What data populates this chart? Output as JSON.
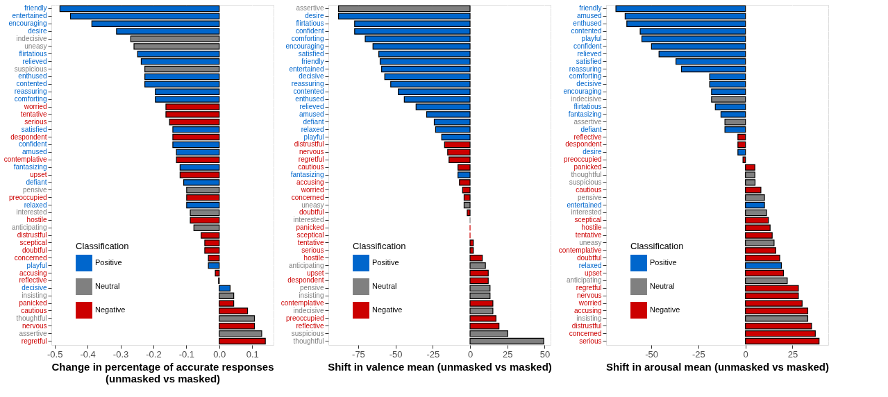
{
  "chart_data": [
    {
      "type": "bar",
      "orientation": "horizontal",
      "xlabel": "Change in percentage of accurate responses\n(unmasked vs masked)",
      "legend_title": "Classification",
      "legend": "bottom left",
      "grid": true,
      "categories": [
        "friendly",
        "entertained",
        "encouraging",
        "desire",
        "indecisive",
        "uneasy",
        "flirtatious",
        "relieved",
        "suspicious",
        "enthused",
        "contented",
        "reassuring",
        "comforting",
        "worried",
        "tentative",
        "serious",
        "satisfied",
        "despondent",
        "confident",
        "amused",
        "contemplative",
        "fantasizing",
        "upset",
        "defiant",
        "pensive",
        "preoccupied",
        "relaxed",
        "interested",
        "hostile",
        "anticipating",
        "distrustful",
        "sceptical",
        "doubtful",
        "concerned",
        "playful",
        "accusing",
        "reflective",
        "decisive",
        "insisting",
        "panicked",
        "cautious",
        "thoughtful",
        "nervous",
        "assertive",
        "regretful"
      ],
      "xlim": [
        -0.51,
        0.165
      ],
      "xticks": [
        -0.5,
        -0.4,
        -0.3,
        -0.2,
        -0.1,
        {
          "value": 0,
          "label": "0.0"
        },
        0.1
      ],
      "series": [
        {
          "name": "Positive",
          "color": "#0066cc",
          "values": [
            -0.484,
            -0.452,
            -0.387,
            -0.312,
            null,
            null,
            -0.248,
            -0.237,
            null,
            -0.226,
            -0.226,
            -0.194,
            -0.194,
            null,
            null,
            null,
            -0.141,
            null,
            -0.141,
            -0.13,
            null,
            -0.119,
            null,
            -0.108,
            null,
            null,
            -0.099,
            null,
            null,
            null,
            null,
            null,
            null,
            null,
            -0.033,
            null,
            null,
            0.033,
            null,
            null,
            null,
            null,
            null,
            null,
            null
          ]
        },
        {
          "name": "Neutral",
          "color": "#808080",
          "values": [
            null,
            null,
            null,
            null,
            -0.269,
            -0.259,
            null,
            null,
            -0.226,
            null,
            null,
            null,
            null,
            null,
            null,
            null,
            null,
            null,
            null,
            null,
            null,
            null,
            null,
            null,
            -0.099,
            null,
            null,
            -0.088,
            null,
            -0.077,
            null,
            null,
            null,
            null,
            null,
            null,
            null,
            null,
            0.044,
            null,
            null,
            0.107,
            null,
            0.129,
            null
          ]
        },
        {
          "name": "Negative",
          "color": "#cc0000",
          "values": [
            null,
            null,
            null,
            null,
            null,
            null,
            null,
            null,
            null,
            null,
            null,
            null,
            null,
            -0.162,
            -0.162,
            -0.151,
            null,
            -0.141,
            null,
            null,
            -0.13,
            null,
            -0.119,
            null,
            null,
            -0.099,
            null,
            null,
            -0.088,
            null,
            -0.055,
            -0.044,
            -0.044,
            -0.033,
            null,
            -0.012,
            -0.002,
            null,
            null,
            0.044,
            0.086,
            null,
            0.107,
            null,
            0.14
          ]
        }
      ]
    },
    {
      "type": "bar",
      "orientation": "horizontal",
      "xlabel": "Shift in valence mean (unmasked vs masked)",
      "legend_title": "Classification",
      "legend": "bottom left",
      "grid": true,
      "categories": [
        "assertive",
        "desire",
        "flirtatious",
        "confident",
        "comforting",
        "encouraging",
        "satisfied",
        "friendly",
        "entertained",
        "decisive",
        "reassuring",
        "contented",
        "enthused",
        "relieved",
        "amused",
        "defiant",
        "relaxed",
        "playful",
        "distrustful",
        "nervous",
        "regretful",
        "cautious",
        "fantasizing",
        "accusing",
        "worried",
        "concerned",
        "uneasy",
        "doubtful",
        "interested",
        "panicked",
        "sceptical",
        "tentative",
        "serious",
        "hostile",
        "anticipating",
        "upset",
        "despondent",
        "pensive",
        "insisting",
        "contemplative",
        "indecisive",
        "preoccupied",
        "reflective",
        "suspicious",
        "thoughtful"
      ],
      "xlim": [
        -95,
        54
      ],
      "xticks": [
        -75,
        -50,
        -25,
        0,
        25,
        50
      ],
      "series": [
        {
          "name": "Positive",
          "color": "#0066cc",
          "values": [
            null,
            -88.2,
            -77.4,
            -77.4,
            -70.3,
            -65.1,
            -61.2,
            -60.3,
            -59.3,
            -57.2,
            -53.2,
            -48.1,
            -44.1,
            -36.2,
            -29.1,
            -24.0,
            -23.1,
            -19.0,
            null,
            null,
            null,
            null,
            -8.1,
            null,
            null,
            null,
            null,
            null,
            null,
            null,
            null,
            null,
            null,
            null,
            null,
            null,
            null,
            null,
            null,
            null,
            null,
            null,
            null,
            null,
            null
          ]
        },
        {
          "name": "Neutral",
          "color": "#808080",
          "values": [
            -88.2,
            null,
            null,
            null,
            null,
            null,
            null,
            null,
            null,
            null,
            null,
            null,
            null,
            null,
            null,
            null,
            null,
            null,
            null,
            null,
            null,
            null,
            null,
            null,
            null,
            null,
            -4.0,
            null,
            0,
            null,
            null,
            null,
            null,
            null,
            10.3,
            null,
            null,
            13.4,
            13.4,
            null,
            15.3,
            null,
            null,
            25.3,
            49.4
          ]
        },
        {
          "name": "Negative",
          "color": "#cc0000",
          "values": [
            null,
            null,
            null,
            null,
            null,
            null,
            null,
            null,
            null,
            null,
            null,
            null,
            null,
            null,
            null,
            null,
            null,
            null,
            -17.1,
            -15.0,
            -14.1,
            -8.1,
            null,
            -7.1,
            -5.0,
            -4.0,
            null,
            -1.9,
            null,
            0,
            0,
            2.2,
            2.2,
            8.2,
            null,
            12.2,
            12.2,
            null,
            null,
            15.3,
            null,
            17.4,
            19.4,
            null,
            null
          ]
        }
      ]
    },
    {
      "type": "bar",
      "orientation": "horizontal",
      "xlabel": "Shift in arousal mean (unmasked vs masked)",
      "legend_title": "Classification",
      "legend": "bottom left",
      "grid": true,
      "categories": [
        "friendly",
        "amused",
        "enthused",
        "contented",
        "playful",
        "confident",
        "relieved",
        "satisfied",
        "reassuring",
        "comforting",
        "decisive",
        "encouraging",
        "indecisive",
        "flirtatious",
        "fantasizing",
        "assertive",
        "defiant",
        "reflective",
        "despondent",
        "desire",
        "preoccupied",
        "panicked",
        "thoughtful",
        "suspicious",
        "cautious",
        "pensive",
        "entertained",
        "interested",
        "sceptical",
        "hostile",
        "tentative",
        "uneasy",
        "contemplative",
        "doubtful",
        "relaxed",
        "upset",
        "anticipating",
        "regretful",
        "nervous",
        "worried",
        "accusing",
        "insisting",
        "distrustful",
        "concerned",
        "serious"
      ],
      "xlim": [
        -74,
        44
      ],
      "xticks": [
        -50,
        -25,
        0,
        25
      ],
      "series": [
        {
          "name": "Positive",
          "color": "#0066cc",
          "values": [
            -68.8,
            -63.9,
            -63.0,
            -55.9,
            -55.0,
            -49.9,
            -45.9,
            -36.9,
            -34.0,
            -19.0,
            -19.0,
            -18.0,
            null,
            -16.0,
            -13.0,
            null,
            -10.9,
            null,
            null,
            -4.0,
            null,
            null,
            null,
            null,
            null,
            null,
            10.1,
            null,
            null,
            null,
            null,
            null,
            null,
            null,
            19.1,
            null,
            null,
            null,
            null,
            null,
            null,
            null,
            null,
            null,
            null
          ]
        },
        {
          "name": "Neutral",
          "color": "#808080",
          "values": [
            null,
            null,
            null,
            null,
            null,
            null,
            null,
            null,
            null,
            null,
            null,
            null,
            -18.0,
            null,
            null,
            -10.9,
            null,
            null,
            null,
            null,
            null,
            null,
            5.0,
            5.1,
            null,
            10.1,
            null,
            11.2,
            null,
            null,
            null,
            15.2,
            null,
            null,
            null,
            null,
            22.2,
            null,
            null,
            null,
            null,
            33.1,
            null,
            null,
            null
          ]
        },
        {
          "name": "Negative",
          "color": "#cc0000",
          "values": [
            null,
            null,
            null,
            null,
            null,
            null,
            null,
            null,
            null,
            null,
            null,
            null,
            null,
            null,
            null,
            null,
            null,
            -4.0,
            -4.0,
            null,
            -1.3,
            5.0,
            null,
            null,
            8.2,
            null,
            null,
            null,
            12.2,
            13.1,
            14.2,
            null,
            16.1,
            18.2,
            null,
            20.2,
            null,
            28.1,
            28.1,
            30.1,
            33.1,
            null,
            35.1,
            37.1,
            39.1
          ]
        }
      ]
    }
  ]
}
